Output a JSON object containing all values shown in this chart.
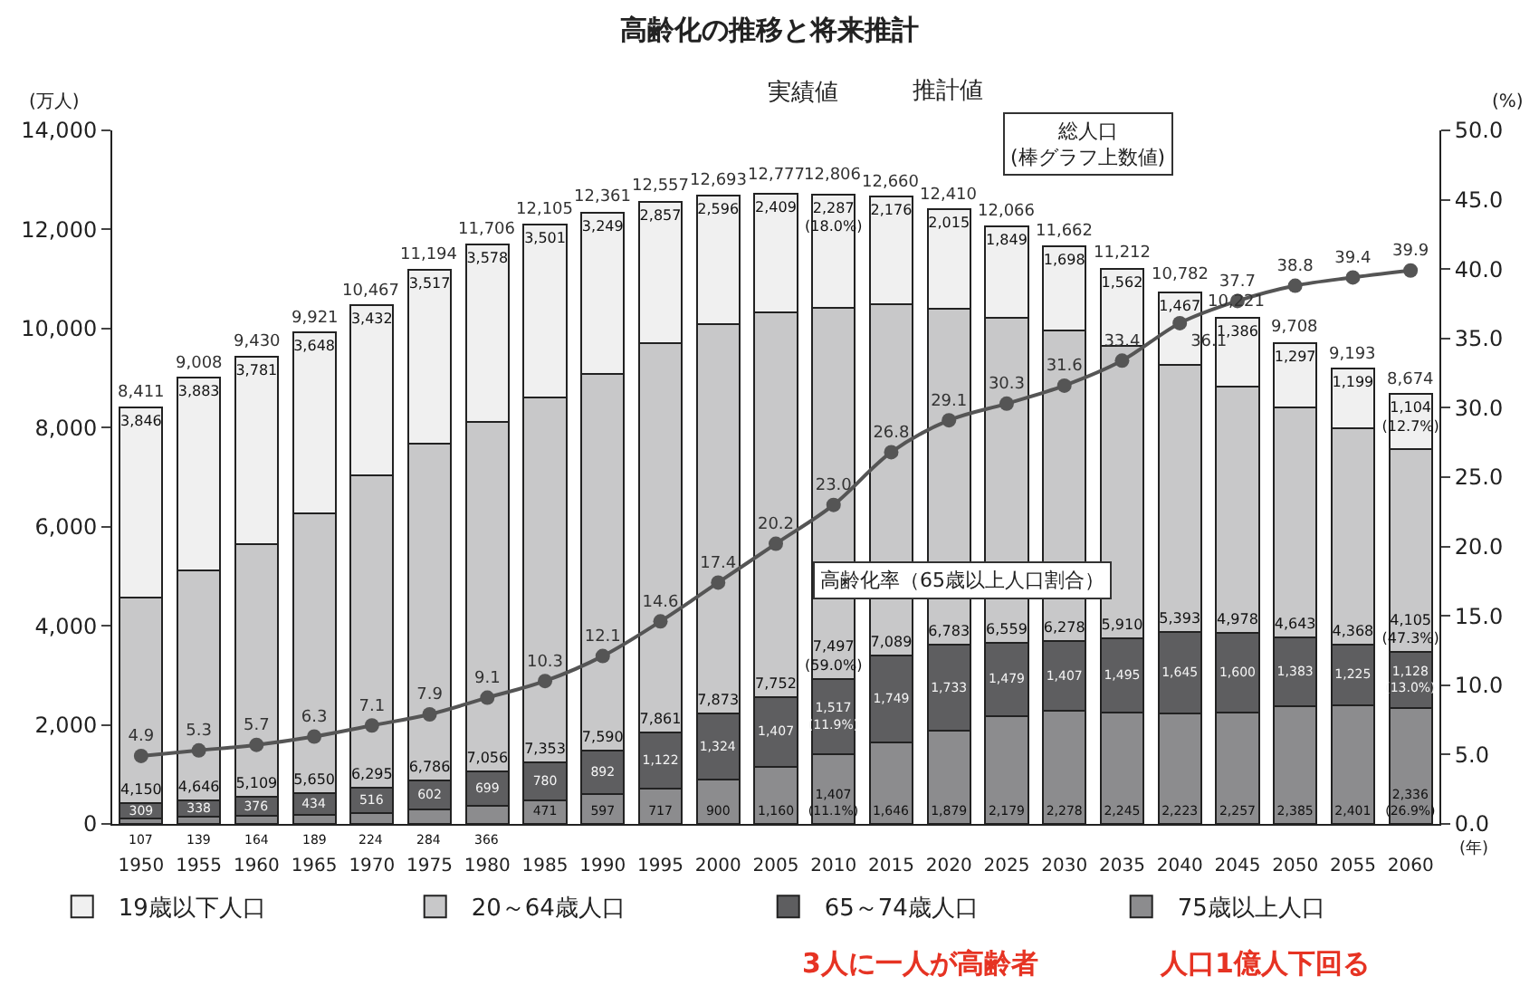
{
  "chart_data": {
    "type": "bar",
    "title": "高齢化の推移と将来推計",
    "ylabel": "(万人)",
    "y2label": "(%)",
    "xlabel": "(年)",
    "categories": [
      "1950",
      "1955",
      "1960",
      "1965",
      "1970",
      "1975",
      "1980",
      "1985",
      "1990",
      "1995",
      "2000",
      "2005",
      "2010",
      "2015",
      "2020",
      "2025",
      "2030",
      "2035",
      "2040",
      "2045",
      "2050",
      "2055",
      "2060"
    ],
    "stacked": true,
    "legend": "bottom left",
    "ylim": [
      0,
      14000
    ],
    "yticks": [
      0,
      {
        "value": 2000,
        "label": "2,000"
      },
      {
        "value": 4000,
        "label": "4,000"
      },
      {
        "value": 6000,
        "label": "6,000"
      },
      {
        "value": 8000,
        "label": "8,000"
      },
      {
        "value": 10000,
        "label": "10,000"
      },
      {
        "value": 12000,
        "label": "12,000"
      },
      {
        "value": 14000,
        "label": "14,000"
      }
    ],
    "y2lim": [
      0,
      50
    ],
    "y2ticks": [
      {
        "value": 0,
        "label": "0.0"
      },
      {
        "value": 5,
        "label": "5.0"
      },
      {
        "value": 10,
        "label": "10.0"
      },
      {
        "value": 15,
        "label": "15.0"
      },
      {
        "value": 20,
        "label": "20.0"
      },
      {
        "value": 25,
        "label": "25.0"
      },
      {
        "value": 30,
        "label": "30.0"
      },
      {
        "value": 35,
        "label": "35.0"
      },
      {
        "value": 40,
        "label": "40.0"
      },
      {
        "value": 45,
        "label": "45.0"
      },
      {
        "value": 50,
        "label": "50.0"
      }
    ],
    "series": [
      {
        "name": "75歳以上人口",
        "color": "#8c8c8e",
        "values": [
          107,
          139,
          164,
          189,
          224,
          284,
          366,
          471,
          597,
          717,
          900,
          1160,
          1407,
          1646,
          1879,
          2179,
          2278,
          2245,
          2223,
          2257,
          2385,
          2401,
          2336
        ],
        "value_labels": [
          "107",
          "139",
          "164",
          "189",
          "224",
          "284",
          "366",
          "471",
          "597",
          "717",
          "900",
          "1,160",
          "1,407\n(11.1%)",
          "1,646",
          "1,879",
          "2,179",
          "2,278",
          "2,245",
          "2,223",
          "2,257",
          "2,385",
          "2,401",
          "2,336\n(26.9%)"
        ]
      },
      {
        "name": "65～74歳人口",
        "color": "#5e5e60",
        "values": [
          309,
          338,
          376,
          434,
          516,
          602,
          699,
          780,
          892,
          1122,
          1324,
          1407,
          1517,
          1749,
          1733,
          1479,
          1407,
          1495,
          1645,
          1600,
          1383,
          1225,
          1128
        ],
        "value_labels": [
          "309",
          "338",
          "376",
          "434",
          "516",
          "602",
          "699",
          "780",
          "892",
          "1,122",
          "1,324",
          "1,407",
          "1,517\n(11.9%)",
          "1,749",
          "1,733",
          "1,479",
          "1,407",
          "1,495",
          "1,645",
          "1,600",
          "1,383",
          "1,225",
          "1,128\n(13.0%)"
        ]
      },
      {
        "name": "20～64歳人口",
        "color": "#c8c8c9",
        "values": [
          4150,
          4646,
          5109,
          5650,
          6295,
          6786,
          7056,
          7353,
          7590,
          7861,
          7873,
          7752,
          7497,
          7089,
          6783,
          6559,
          6278,
          5910,
          5393,
          4978,
          4643,
          4368,
          4105
        ],
        "value_labels": [
          "4,150",
          "4,646",
          "5,109",
          "5,650",
          "6,295",
          "6,786",
          "7,056",
          "7,353",
          "7,590",
          "7,861",
          "7,873",
          "7,752",
          "7,497\n(59.0%)",
          "7,089",
          "6,783",
          "6,559",
          "6,278",
          "5,910",
          "5,393",
          "4,978",
          "4,643",
          "4,368",
          "4,105\n(47.3%)"
        ]
      },
      {
        "name": "19歳以下人口",
        "color": "#f0f0f0",
        "values": [
          3846,
          3883,
          3781,
          3648,
          3432,
          3517,
          3578,
          3501,
          3249,
          2857,
          2596,
          2409,
          2287,
          2176,
          2015,
          1849,
          1698,
          1562,
          1467,
          1386,
          1297,
          1199,
          1104
        ],
        "value_labels": [
          "3,846",
          "3,883",
          "3,781",
          "3,648",
          "3,432",
          "3,517",
          "3,578",
          "3,501",
          "3,249",
          "2,857",
          "2,596",
          "2,409",
          "2,287\n(18.0%)",
          "2,176",
          "2,015",
          "1,849",
          "1,698",
          "1,562",
          "1,467",
          "1,386",
          "1,297",
          "1,199",
          "1,104\n(12.7%)"
        ]
      },
      {
        "type": "line",
        "axis": "y2",
        "color": "#555555",
        "marker": "circle",
        "line_style": "solid",
        "values": [
          4.9,
          5.3,
          5.7,
          6.3,
          7.1,
          7.9,
          9.1,
          10.3,
          12.1,
          14.6,
          17.4,
          20.2,
          23.0,
          26.8,
          29.1,
          30.3,
          31.6,
          33.4,
          36.1,
          37.7,
          38.8,
          39.4,
          39.9
        ],
        "value_labels": [
          "4.9",
          "5.3",
          "5.7",
          "6.3",
          "7.1",
          "7.9",
          "9.1",
          "10.3",
          "12.1",
          "14.6",
          "17.4",
          "20.2",
          "23.0",
          "26.8",
          "29.1",
          "30.3",
          "31.6",
          "33.4",
          "36.1",
          "37.7",
          "38.8",
          "39.4",
          "39.9"
        ]
      }
    ],
    "annotations": [
      "実績値",
      "推計値",
      "総人口\n(棒グラフ上数値)",
      "高齢化率（65歳以上人口割合）",
      "3人に一人が高齢者",
      "人口1億人下回る",
      {
        "text": "8,411",
        "x": "1950",
        "y": 8411
      },
      {
        "text": "9,008",
        "x": "1955",
        "y": 9008
      },
      {
        "text": "9,430",
        "x": "1960",
        "y": 9430
      },
      {
        "text": "9,921",
        "x": "1965",
        "y": 9921
      },
      {
        "text": "10,467",
        "x": "1970",
        "y": 10467
      },
      {
        "text": "11,194",
        "x": "1975",
        "y": 11194
      },
      {
        "text": "11,706",
        "x": "1980",
        "y": 11706
      },
      {
        "text": "12,105",
        "x": "1985",
        "y": 12105
      },
      {
        "text": "12,361",
        "x": "1990",
        "y": 12361
      },
      {
        "text": "12,557",
        "x": "1995",
        "y": 12557
      },
      {
        "text": "12,693",
        "x": "2000",
        "y": 12693
      },
      {
        "text": "12,777",
        "x": "2005",
        "y": 12777
      },
      {
        "text": "12,806",
        "x": "2010",
        "y": 12806
      },
      {
        "text": "12,660",
        "x": "2015",
        "y": 12660
      },
      {
        "text": "12,410",
        "x": "2020",
        "y": 12410
      },
      {
        "text": "12,066",
        "x": "2025",
        "y": 12066
      },
      {
        "text": "11,662",
        "x": "2030",
        "y": 11662
      },
      {
        "text": "11,212",
        "x": "2035",
        "y": 11212
      },
      {
        "text": "10,782",
        "x": "2040",
        "y": 10782
      },
      {
        "text": "10,221",
        "x": "2045",
        "y": 10221
      },
      {
        "text": "9,708",
        "x": "2050",
        "y": 9708
      },
      {
        "text": "9,193",
        "x": "2055",
        "y": 9193
      },
      {
        "text": "8,674",
        "x": "2060",
        "y": 8674
      }
    ]
  }
}
